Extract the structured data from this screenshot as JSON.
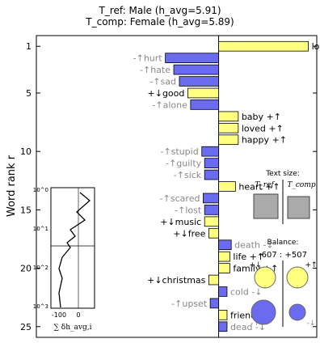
{
  "header": {
    "line1": "T_ref: Male (h_avg=5.91)",
    "line2": "T_comp: Female (h_avg=5.89)"
  },
  "chart_data": {
    "type": "bar",
    "orientation": "horizontal",
    "title": "T_ref: Male (h_avg=5.91) / T_comp: Female (h_avg=5.89)",
    "ylabel": "Word rank r",
    "ylim": [
      1,
      25
    ],
    "y_ticks": [
      1,
      5,
      10,
      15,
      20,
      25
    ],
    "xlim": [
      -6.5,
      3.5
    ],
    "grid": false,
    "colors": {
      "up_positive": "#ffff80",
      "down_positive": "#ffff80",
      "up_negative": "#6b6bef",
      "down_negative": "#6b6bef",
      "text_up_neg": "#888888",
      "text_down_neg": "#888888"
    },
    "bars": [
      {
        "rank": 1,
        "word": "love",
        "label": "love +↑",
        "value": 3.2,
        "kind": "pos"
      },
      {
        "rank": 2,
        "word": "hurt",
        "label": "-↑hurt",
        "value": -1.9,
        "kind": "neg"
      },
      {
        "rank": 3,
        "word": "hate",
        "label": "-↑hate",
        "value": -1.6,
        "kind": "neg"
      },
      {
        "rank": 4,
        "word": "sad",
        "label": "-↑sad",
        "value": -1.4,
        "kind": "neg"
      },
      {
        "rank": 5,
        "word": "good",
        "label": "+↓good",
        "value": -1.1,
        "kind": "pos"
      },
      {
        "rank": 6,
        "word": "alone",
        "label": "-↑alone",
        "value": -1.0,
        "kind": "neg"
      },
      {
        "rank": 7,
        "word": "baby",
        "label": "baby +↑",
        "value": 0.7,
        "kind": "pos"
      },
      {
        "rank": 8,
        "word": "loved",
        "label": "loved +↑",
        "value": 0.7,
        "kind": "pos"
      },
      {
        "rank": 9,
        "word": "happy",
        "label": "happy +↑",
        "value": 0.7,
        "kind": "pos"
      },
      {
        "rank": 10,
        "word": "stupid",
        "label": "-↑stupid",
        "value": -0.6,
        "kind": "neg"
      },
      {
        "rank": 11,
        "word": "guilty",
        "label": "-↑guilty",
        "value": -0.5,
        "kind": "neg"
      },
      {
        "rank": 12,
        "word": "sick",
        "label": "-↑sick",
        "value": -0.5,
        "kind": "neg"
      },
      {
        "rank": 13,
        "word": "heart",
        "label": "heart +↑",
        "value": 0.6,
        "kind": "pos"
      },
      {
        "rank": 14,
        "word": "scared",
        "label": "-↑scared",
        "value": -0.55,
        "kind": "neg"
      },
      {
        "rank": 15,
        "word": "lost",
        "label": "-↑lost",
        "value": -0.5,
        "kind": "neg"
      },
      {
        "rank": 16,
        "word": "music",
        "label": "+↓music",
        "value": -0.5,
        "kind": "pos"
      },
      {
        "rank": 17,
        "word": "free",
        "label": "+↓free",
        "value": -0.35,
        "kind": "pos"
      },
      {
        "rank": 18,
        "word": "death",
        "label": "death -↓",
        "value": 0.45,
        "kind": "neg"
      },
      {
        "rank": 19,
        "word": "life",
        "label": "life +↑",
        "value": 0.4,
        "kind": "pos"
      },
      {
        "rank": 20,
        "word": "family",
        "label": "family +↑",
        "value": 0.4,
        "kind": "pos"
      },
      {
        "rank": 21,
        "word": "christmas",
        "label": "+↓christmas",
        "value": -0.35,
        "kind": "pos"
      },
      {
        "rank": 22,
        "word": "cold",
        "label": "cold -↓",
        "value": 0.3,
        "kind": "neg"
      },
      {
        "rank": 23,
        "word": "upset",
        "label": "-↑upset",
        "value": -0.3,
        "kind": "neg"
      },
      {
        "rank": 24,
        "word": "friend",
        "label": "friend +↑",
        "value": 0.3,
        "kind": "pos"
      },
      {
        "rank": 25,
        "word": "dead",
        "label": "dead -↓",
        "value": 0.3,
        "kind": "neg"
      }
    ],
    "inset_cumsum": {
      "x_ticks": [
        "-100",
        "0"
      ],
      "y_ticks": [
        "10^0",
        "10^1",
        "10^2",
        "10^3"
      ],
      "xlabel": "∑ δh_avg,i"
    },
    "text_size": {
      "title": "Text size:",
      "ref_label": "T_ref",
      "comp_label": "T_comp",
      "ref_size": 1.0,
      "comp_size": 0.9
    },
    "balance": {
      "title": "Balance:",
      "values": "-607 : +507",
      "top_left": "+↓",
      "top_right": "+↑",
      "bottom_left": "-↑",
      "bottom_right": "-↓"
    }
  }
}
